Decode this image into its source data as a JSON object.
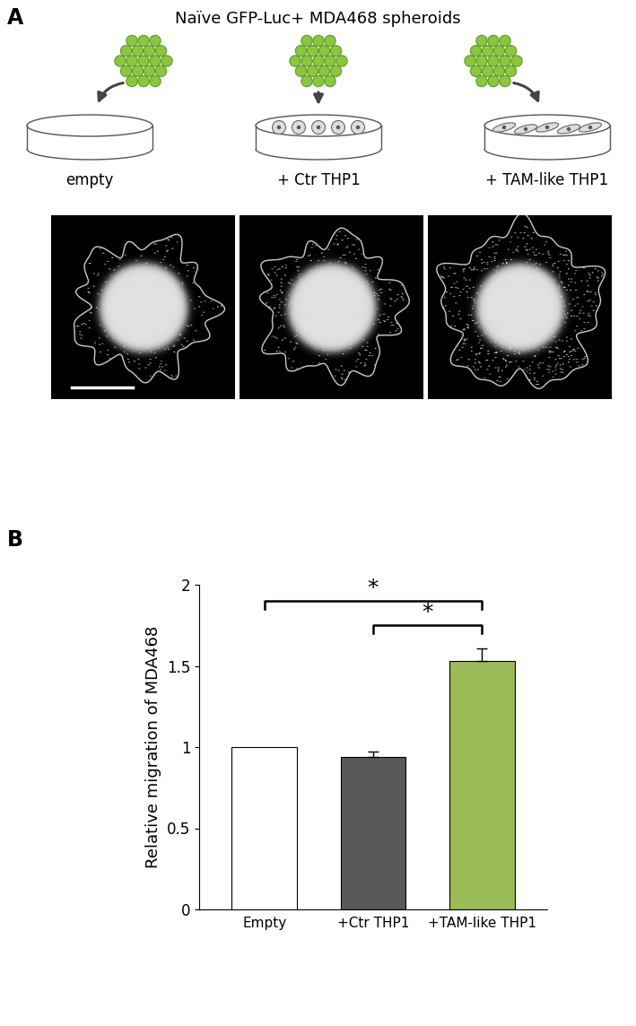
{
  "panel_a": {
    "label": "A",
    "title": "Naïve GFP-Luc+ MDA468 spheroids",
    "conditions": [
      "empty",
      "+ Ctr THP1",
      "+ TAM-like THP1"
    ]
  },
  "chart_data": {
    "type": "bar",
    "panel_label": "B",
    "categories": [
      "Empty",
      "+Ctr THP1",
      "+TAM-like THP1"
    ],
    "values": [
      1,
      0.94,
      1.53
    ],
    "errors": [
      null,
      0.035,
      0.08
    ],
    "colors": [
      "#ffffff",
      "#595959",
      "#9bbb59"
    ],
    "ylabel": "Relative migration of MDA468",
    "ylim": [
      0,
      2
    ],
    "yticks": [
      0,
      0.5,
      1,
      1.5,
      2
    ],
    "significance": [
      {
        "label": "*",
        "from": "Empty",
        "to": "+TAM-like THP1"
      },
      {
        "label": "*",
        "from": "+Ctr THP1",
        "to": "+TAM-like THP1"
      }
    ]
  }
}
